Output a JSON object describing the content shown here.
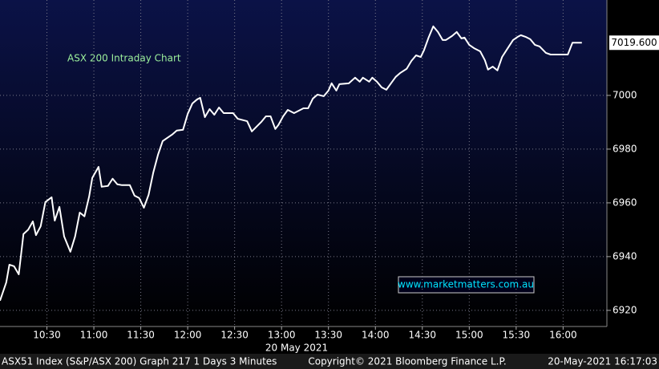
{
  "chart_data": {
    "type": "line",
    "title": "ASX 200 Intraday Chart",
    "watermark": "www.marketmatters.com.au",
    "x_label": "20 May 2021",
    "footer_left": "ASX51 Index (S&P/ASX 200) Graph 217 1 Days 3 Minutes",
    "footer_center": "Copyright© 2021 Bloomberg Finance L.P.",
    "footer_right": "20-May-2021 16:17:03",
    "x": [
      "10:00",
      "10:04",
      "10:06",
      "10:09",
      "10:12",
      "10:15",
      "10:18",
      "10:21",
      "10:23",
      "10:26",
      "10:29",
      "10:33",
      "10:35",
      "10:38",
      "10:41",
      "10:45",
      "10:48",
      "10:51",
      "10:54",
      "10:57",
      "10:59",
      "11:03",
      "11:05",
      "11:09",
      "11:12",
      "11:15",
      "11:18",
      "11:23",
      "11:26",
      "11:29",
      "11:32",
      "11:35",
      "11:38",
      "11:41",
      "11:44",
      "11:47",
      "11:50",
      "11:53",
      "11:57",
      "12:00",
      "12:03",
      "12:06",
      "12:08",
      "12:11",
      "12:14",
      "12:17",
      "12:20",
      "12:23",
      "12:29",
      "12:32",
      "12:38",
      "12:41",
      "12:47",
      "12:50",
      "12:53",
      "12:56",
      "12:58",
      "13:01",
      "13:04",
      "13:08",
      "13:11",
      "13:14",
      "13:17",
      "13:20",
      "13:23",
      "13:27",
      "13:30",
      "13:32",
      "13:35",
      "13:37",
      "13:43",
      "13:47",
      "13:50",
      "13:52",
      "13:56",
      "13:58",
      "14:01",
      "14:04",
      "14:07",
      "14:10",
      "14:13",
      "14:16",
      "14:20",
      "14:23",
      "14:26",
      "14:29",
      "14:31",
      "14:34",
      "14:37",
      "14:40",
      "14:43",
      "14:45",
      "14:49",
      "14:52",
      "14:55",
      "14:57",
      "15:00",
      "15:03",
      "15:07",
      "15:10",
      "15:12",
      "15:15",
      "15:18",
      "15:21",
      "15:24",
      "15:28",
      "15:31",
      "15:33",
      "15:36",
      "15:39",
      "15:42",
      "15:45",
      "15:49",
      "15:52",
      "16:03",
      "16:06",
      "16:12"
    ],
    "series": [
      {
        "name": "ASX51 Index",
        "color": "#ffffff",
        "values": [
          6923.6,
          6930.4,
          6937,
          6936.4,
          6933.4,
          6948.4,
          6950,
          6953.1,
          6948,
          6951.3,
          6960.3,
          6962.1,
          6953.4,
          6958.5,
          6947.5,
          6941.8,
          6947.5,
          6956.4,
          6955,
          6962.4,
          6969.3,
          6973.4,
          6966,
          6966.3,
          6969,
          6966.9,
          6966.6,
          6966.6,
          6962.7,
          6961.8,
          6958.2,
          6963,
          6971.3,
          6977.9,
          6983,
          6984.2,
          6985.4,
          6986.9,
          6987.2,
          6993.1,
          6997,
          6998.5,
          6999.1,
          6991.9,
          6994.9,
          6992.8,
          6995.5,
          6993.4,
          6993.4,
          6991.3,
          6990.4,
          6986.6,
          6990.1,
          6992.2,
          6992.2,
          6987.5,
          6989,
          6992.2,
          6994.6,
          6993.4,
          6994.3,
          6995.2,
          6995.2,
          6998.8,
          7000.3,
          6999.7,
          7001.8,
          7004.5,
          7001.8,
          7004.2,
          7004.5,
          7006.6,
          7005.1,
          7006.6,
          7005.1,
          7006.6,
          7005.1,
          7003,
          7002.1,
          7004.5,
          7006.9,
          7008.4,
          7009.9,
          7012.8,
          7014.9,
          7014.3,
          7016.7,
          7021.5,
          7025.7,
          7023.6,
          7020.6,
          7020.6,
          7022.1,
          7023.6,
          7021.2,
          7021.5,
          7018.8,
          7017.6,
          7016.4,
          7013.1,
          7009.6,
          7010.7,
          7009.3,
          7014.3,
          7017,
          7020.6,
          7021.8,
          7022.4,
          7021.8,
          7020.9,
          7018.8,
          7018.2,
          7015.8,
          7015.2,
          7015.2,
          7019.6,
          7019.6
        ]
      }
    ],
    "last_label": {
      "value": 7019.6,
      "label": "7019.600"
    },
    "xlim": [
      "10:00",
      "16:28"
    ],
    "xticks": [
      "10:30",
      "11:00",
      "11:30",
      "12:00",
      "12:30",
      "13:00",
      "13:30",
      "14:00",
      "14:30",
      "15:00",
      "15:30",
      "16:00"
    ],
    "ylim": [
      6914,
      7035.5
    ],
    "yticks": [
      6920,
      6940,
      6960,
      6980,
      7000
    ],
    "grid": true
  }
}
